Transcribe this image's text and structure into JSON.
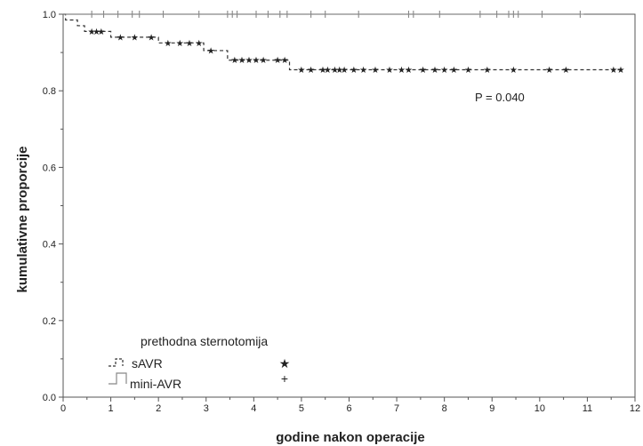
{
  "chart_data": {
    "type": "line",
    "subtype": "kaplan-meier",
    "xlabel": "godine nakon operacije",
    "ylabel": "kumulativne proporcije",
    "xlim": [
      0,
      12
    ],
    "ylim": [
      0.0,
      1.0
    ],
    "x_ticks": [
      "0",
      "1",
      "2",
      "3",
      "4",
      "5",
      "6",
      "7",
      "8",
      "9",
      "10",
      "11",
      "12"
    ],
    "y_ticks": [
      "0.0",
      "0.2",
      "0.4",
      "0.6",
      "0.8",
      "1.0"
    ],
    "grid": false,
    "annotation": "P = 0.040",
    "legend": {
      "title": "prethodna sternotomija",
      "position": "bottom-left",
      "entries": [
        {
          "label": "sAVR",
          "line_style": "dashed",
          "censor_mark": "★"
        },
        {
          "label": "mini-AVR",
          "line_style": "solid",
          "censor_mark": "+"
        }
      ]
    },
    "series": [
      {
        "name": "sAVR",
        "line_style": "dashed",
        "color": "#333333",
        "censor_symbol": "star",
        "steps": [
          [
            0.0,
            1.0
          ],
          [
            0.05,
            0.985
          ],
          [
            0.3,
            0.97
          ],
          [
            0.45,
            0.955
          ],
          [
            1.0,
            0.94
          ],
          [
            2.0,
            0.925
          ],
          [
            2.95,
            0.905
          ],
          [
            3.45,
            0.88
          ],
          [
            4.75,
            0.855
          ]
        ],
        "end_x": 11.75,
        "censor_times": [
          0.6,
          0.7,
          0.8,
          1.2,
          1.5,
          1.85,
          2.2,
          2.45,
          2.65,
          2.85,
          3.1,
          3.6,
          3.75,
          3.9,
          4.05,
          4.2,
          4.5,
          4.65,
          5.0,
          5.2,
          5.45,
          5.55,
          5.7,
          5.8,
          5.9,
          6.1,
          6.3,
          6.55,
          6.85,
          7.1,
          7.25,
          7.55,
          7.8,
          8.0,
          8.2,
          8.5,
          8.9,
          9.45,
          10.2,
          10.55,
          11.55,
          11.7
        ]
      },
      {
        "name": "mini-AVR",
        "line_style": "solid",
        "color": "#888888",
        "censor_symbol": "plus",
        "steps": [
          [
            0.0,
            1.0
          ]
        ],
        "end_x": 10.85,
        "censor_times": [
          0.6,
          0.85,
          1.15,
          1.45,
          1.6,
          2.1,
          2.85,
          3.45,
          3.55,
          3.65,
          4.05,
          4.3,
          4.55,
          4.7,
          5.2,
          5.5,
          6.2,
          7.25,
          7.35,
          7.9,
          8.75,
          9.1,
          9.35,
          9.45,
          9.55,
          10.05,
          10.85
        ]
      }
    ]
  }
}
